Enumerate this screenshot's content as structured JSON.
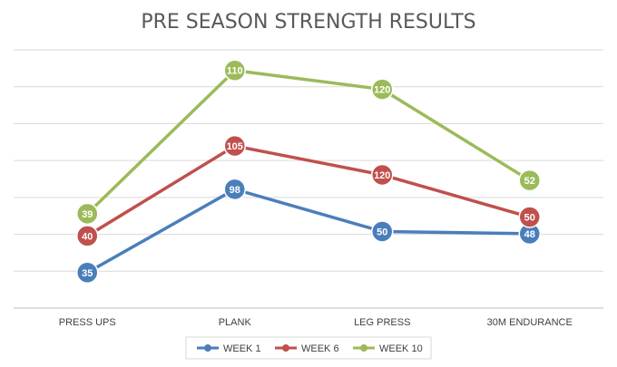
{
  "chart_data": {
    "type": "line",
    "title": "PRE SEASON STRENGTH RESULTS",
    "xlabel": "",
    "ylabel": "",
    "categories": [
      "PRESS UPS",
      "PLANK",
      "LEG PRESS",
      "30M ENDURANCE"
    ],
    "grid": true,
    "legend_position": "bottom",
    "series": [
      {
        "name": "WEEK 1",
        "color": "#4a7ebb",
        "labels": [
          "35",
          "98",
          "50",
          "48"
        ],
        "plot_levels": [
          0.16,
          0.535,
          0.345,
          0.335
        ]
      },
      {
        "name": "WEEK 6",
        "color": "#c0504d",
        "labels": [
          "40",
          "105",
          "120",
          "50"
        ],
        "plot_levels": [
          0.325,
          0.73,
          0.6,
          0.41
        ]
      },
      {
        "name": "WEEK 10",
        "color": "#9bbb59",
        "labels": [
          "39",
          "110",
          "120",
          "52"
        ],
        "plot_levels": [
          0.425,
          1.07,
          0.985,
          0.575
        ]
      }
    ]
  }
}
